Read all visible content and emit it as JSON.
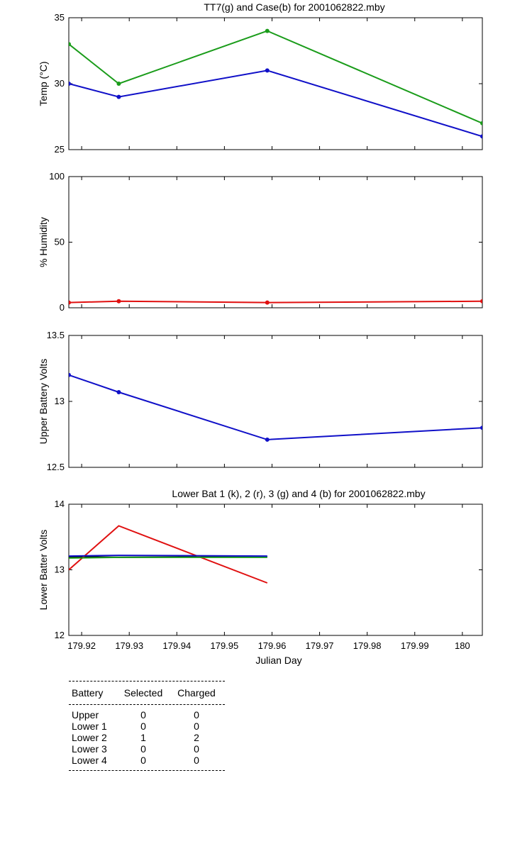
{
  "chart_data": [
    {
      "type": "line",
      "title": "TT7(g) and Case(b) for 2001062822.mby",
      "ylabel": "Temp  (°C)",
      "xlim": [
        179.9173,
        180.0042
      ],
      "ylim": [
        25,
        35
      ],
      "yticks": [
        "25",
        "30",
        "35"
      ],
      "x": [
        179.9173,
        179.9278,
        179.959,
        180.0042
      ],
      "series": [
        {
          "color": "#1a9c1a",
          "marker": "dot",
          "values": [
            33,
            30,
            34,
            27
          ]
        },
        {
          "color": "#1010c8",
          "marker": "dot",
          "values": [
            30,
            29,
            31,
            26
          ]
        }
      ]
    },
    {
      "type": "line",
      "title": "",
      "ylabel": "% Humidity",
      "xlim": [
        179.9173,
        180.0042
      ],
      "ylim": [
        0,
        100
      ],
      "yticks": [
        "0",
        "50",
        "100"
      ],
      "x": [
        179.9173,
        179.9278,
        179.959,
        180.0042
      ],
      "series": [
        {
          "color": "#e01010",
          "marker": "dot",
          "values": [
            4,
            5,
            4,
            5
          ]
        }
      ]
    },
    {
      "type": "line",
      "title": "",
      "ylabel": "Upper Battery Volts",
      "xlim": [
        179.9173,
        180.0042
      ],
      "ylim": [
        12.5,
        13.5
      ],
      "yticks": [
        "12.5",
        "13",
        "13.5"
      ],
      "x": [
        179.9173,
        179.9278,
        179.959,
        180.0042
      ],
      "series": [
        {
          "color": "#1010c8",
          "marker": "dot",
          "values": [
            13.2,
            13.07,
            12.71,
            12.8
          ]
        }
      ]
    },
    {
      "type": "line",
      "title": "Lower Bat 1 (k), 2 (r), 3 (g) and 4 (b) for 2001062822.mby",
      "ylabel": "Lower Batter Volts",
      "xlabel": "Julian Day",
      "xlim": [
        179.9173,
        180.0042
      ],
      "ylim": [
        12,
        14
      ],
      "yticks": [
        "12",
        "13",
        "14"
      ],
      "xticks": [
        179.92,
        179.93,
        179.94,
        179.95,
        179.96,
        179.97,
        179.98,
        179.99,
        180
      ],
      "xticklabels": [
        "179.92",
        "179.93",
        "179.94",
        "179.95",
        "179.96",
        "179.97",
        "179.98",
        "179.99",
        "180"
      ],
      "x": [
        179.9173,
        179.9278,
        179.959
      ],
      "series": [
        {
          "color": "#000000",
          "marker": "none",
          "values": [
            13.2,
            13.19,
            13.2
          ]
        },
        {
          "color": "#e01010",
          "marker": "none",
          "values": [
            13.0,
            13.67,
            12.8
          ]
        },
        {
          "color": "#1a9c1a",
          "marker": "none",
          "values": [
            13.18,
            13.19,
            13.19
          ]
        },
        {
          "color": "#1010c8",
          "marker": "none",
          "values": [
            13.21,
            13.22,
            13.21
          ]
        }
      ]
    }
  ],
  "summary": {
    "headers": [
      "Battery",
      "Selected",
      "Charged"
    ],
    "rows": [
      [
        "Upper",
        "0",
        "0"
      ],
      [
        "Lower 1",
        "0",
        "0"
      ],
      [
        "Lower 2",
        "1",
        "2"
      ],
      [
        "Lower 3",
        "0",
        "0"
      ],
      [
        "Lower 4",
        "0",
        "0"
      ]
    ]
  }
}
